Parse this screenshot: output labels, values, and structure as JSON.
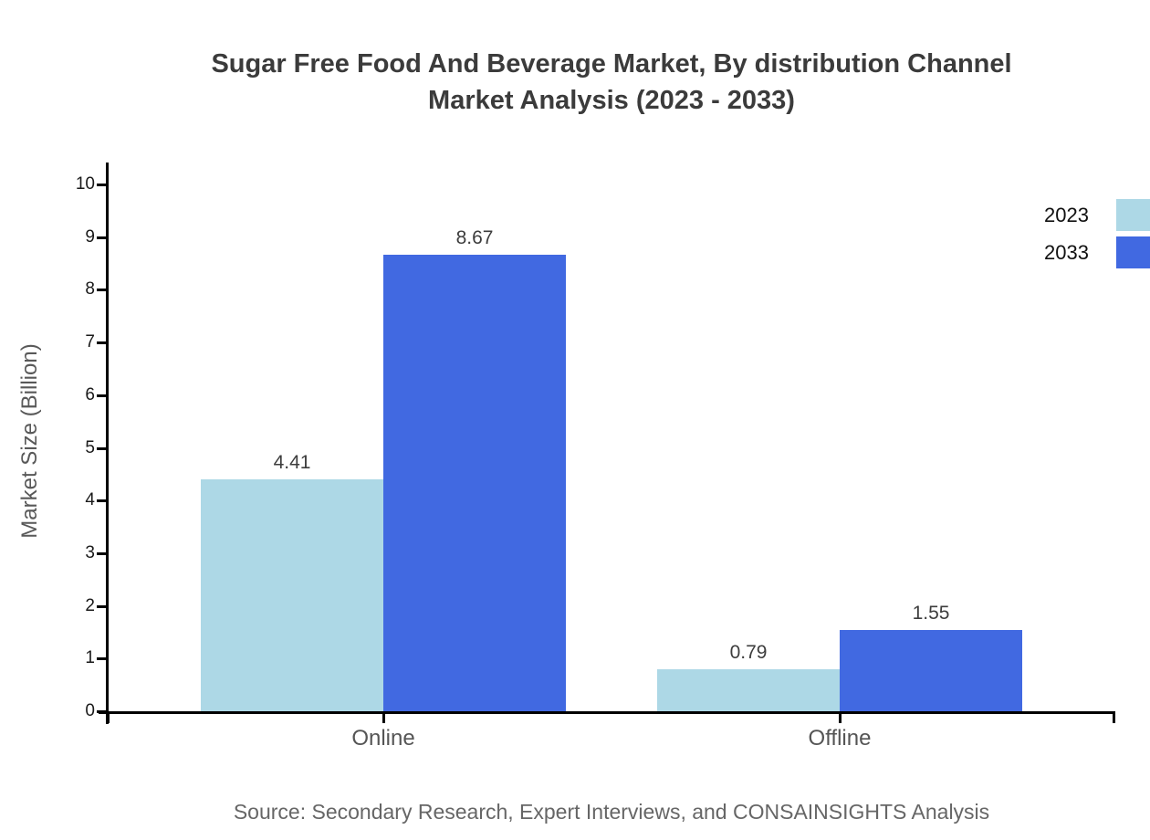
{
  "title": {
    "line1": "Sugar Free Food And Beverage Market, By distribution Channel",
    "line2": "Market Analysis (2023 - 2033)"
  },
  "chart_data": {
    "type": "bar",
    "title": "Sugar Free Food And Beverage Market, By distribution Channel Market Analysis (2023 - 2033)",
    "categories": [
      "Online",
      "Offline"
    ],
    "series": [
      {
        "name": "2023",
        "color": "#ADD8E6",
        "values": [
          4.41,
          0.79
        ]
      },
      {
        "name": "2033",
        "color": "#4169E1",
        "values": [
          8.67,
          1.55
        ]
      }
    ],
    "value_labels": [
      "4.41",
      "8.67",
      "0.79",
      "1.55"
    ],
    "xlabel": "",
    "ylabel": "Market Size (Billion)",
    "ylim": [
      0,
      10
    ],
    "yticks": [
      0,
      1,
      2,
      3,
      4,
      5,
      6,
      7,
      8,
      9,
      10
    ],
    "grid": false,
    "legend_position": "top-right"
  },
  "source": "Source: Secondary Research, Expert Interviews, and CONSAINSIGHTS Analysis",
  "colors": {
    "background": "#ffffff",
    "title_text": "#3b3b3b",
    "axis": "#000000",
    "tick_label": "#1a1a1a",
    "value_label": "#3d3d3d",
    "category_label": "#555555",
    "axis_title": "#595959",
    "source_text": "#666666",
    "series_2023": "#ADD8E6",
    "series_2033": "#4169E1"
  }
}
